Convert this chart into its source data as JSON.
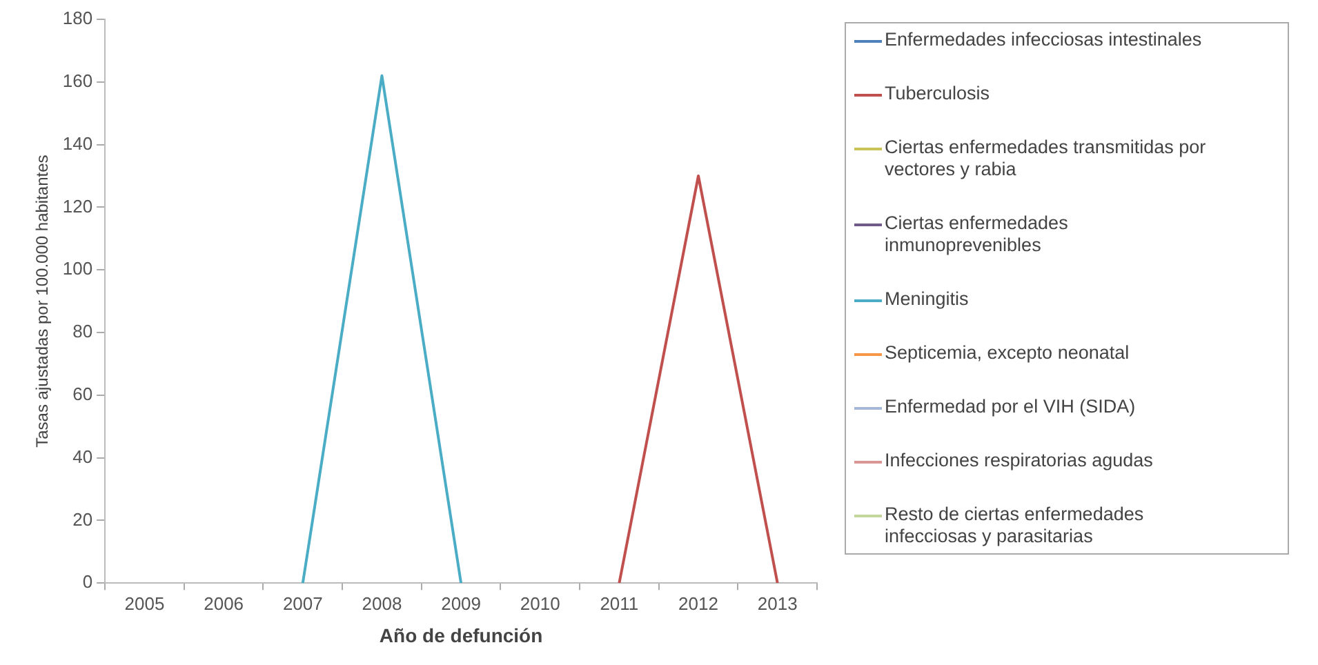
{
  "chart_data": {
    "type": "line",
    "xlabel": "Año de defunción",
    "ylabel": "Tasas ajustadas por 100.000 habitantes",
    "categories": [
      "2005",
      "2006",
      "2007",
      "2008",
      "2009",
      "2010",
      "2011",
      "2012",
      "2013"
    ],
    "series": [
      {
        "name": "Enfermedades infecciosas intestinales",
        "color": "#4f81bd",
        "values": [
          null,
          null,
          null,
          null,
          null,
          null,
          null,
          null,
          null
        ]
      },
      {
        "name": "Tuberculosis",
        "color": "#c0504d",
        "values": [
          null,
          null,
          null,
          null,
          null,
          null,
          0,
          130,
          0
        ]
      },
      {
        "name": "Ciertas enfermedades transmitidas por vectores y rabia",
        "color": "#c9c35a",
        "values": [
          null,
          null,
          null,
          null,
          null,
          null,
          null,
          null,
          null
        ]
      },
      {
        "name": "Ciertas enfermedades inmunoprevenibles",
        "color": "#6f5a8a",
        "values": [
          null,
          null,
          null,
          null,
          null,
          null,
          null,
          null,
          null
        ]
      },
      {
        "name": "Meningitis",
        "color": "#4bacc6",
        "values": [
          null,
          null,
          0,
          162,
          0,
          null,
          null,
          null,
          null
        ]
      },
      {
        "name": "Septicemia, excepto neonatal",
        "color": "#f79646",
        "values": [
          null,
          null,
          null,
          null,
          null,
          null,
          null,
          null,
          null
        ]
      },
      {
        "name": "Enfermedad por el VIH (SIDA)",
        "color": "#a5b8d8",
        "values": [
          null,
          null,
          null,
          null,
          null,
          null,
          null,
          null,
          null
        ]
      },
      {
        "name": "Infecciones respiratorias agudas",
        "color": "#d99694",
        "values": [
          null,
          null,
          null,
          null,
          null,
          null,
          null,
          null,
          null
        ]
      },
      {
        "name": "Resto de ciertas enfermedades infecciosas y parasitarias",
        "color": "#c3d69b",
        "values": [
          null,
          null,
          null,
          null,
          null,
          null,
          null,
          null,
          null
        ]
      }
    ],
    "ylim": [
      0,
      180
    ],
    "yticks": [
      0,
      20,
      40,
      60,
      80,
      100,
      120,
      140,
      160,
      180
    ],
    "grid": false,
    "legend": "right",
    "marker": "none",
    "line_style": "solid"
  }
}
